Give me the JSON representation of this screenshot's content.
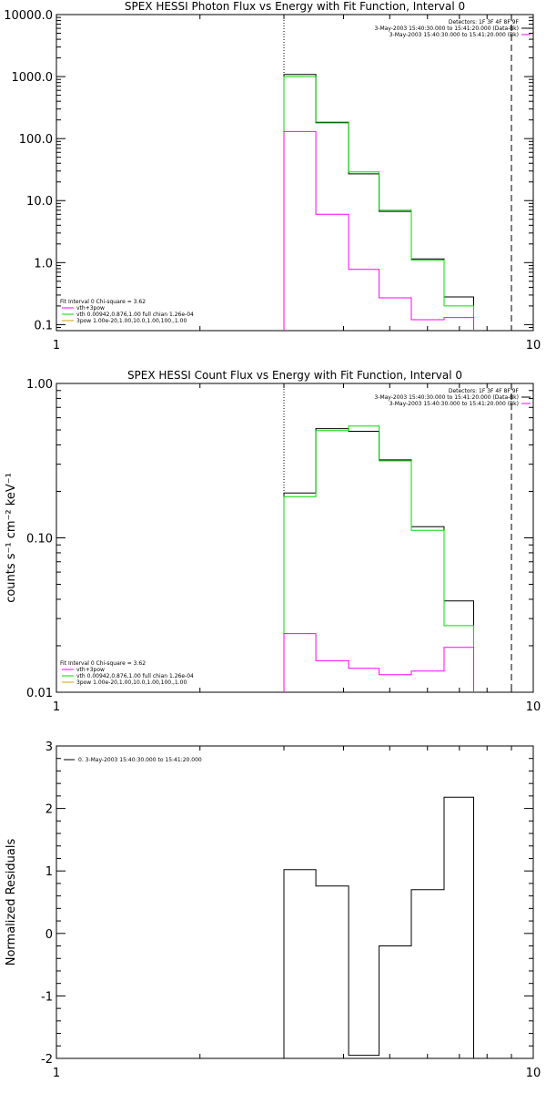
{
  "chart_data": [
    {
      "type": "line",
      "title": "SPEX HESSI Photon Flux vs Energy with Fit Function, Interval 0",
      "xscale": "log",
      "yscale": "log",
      "xlim": [
        1,
        10
      ],
      "ylim": [
        0.08,
        10000
      ],
      "x_ticks": [
        1,
        10
      ],
      "x_tick_labels": [
        "1",
        "10"
      ],
      "y_ticks": [
        0.1,
        1,
        10,
        100,
        1000,
        10000
      ],
      "y_tick_labels": [
        "0.1",
        "1.0",
        "10.0",
        "100.0",
        "1000.0",
        "10000.0"
      ],
      "vlines": [
        {
          "x": 3,
          "style": "dotted"
        },
        {
          "x": 9,
          "style": "dashed"
        }
      ],
      "legend_tr": [
        "Detectors: 1F 3F 4F 8F 9F",
        "3-May-2003 15:40:30.000 to 15:41:20.000 (Data-Bk)",
        "3-May-2003 15:40:30.000 to 15:41:20.000 (Bk)"
      ],
      "legend_bl": [
        "Fit Interval 0   Chi-square = 3.62",
        "vth+3pow",
        "vth 0.00942,0.876,1.00  full chian 1.26e-04",
        "3pow 1.00e-20,1.00,10.0,1.00,100.,1.00"
      ],
      "edges": [
        3,
        3.5,
        4.1,
        4.75,
        5.55,
        6.5,
        7.5,
        9
      ],
      "series": [
        {
          "color": "#000000",
          "values": [
            1080,
            180,
            27,
            6.7,
            1.15,
            0.28,
            null
          ]
        },
        {
          "color": "#00dd00",
          "values": [
            1000,
            185,
            29,
            7,
            1.1,
            0.2,
            null
          ]
        },
        {
          "color": "#ff00ff",
          "values": [
            130,
            6,
            0.78,
            0.27,
            0.12,
            0.13,
            null
          ]
        }
      ]
    },
    {
      "type": "line",
      "title": "SPEX HESSI Count Flux vs Energy with Fit Function, Interval 0",
      "ylabel": "counts s⁻¹ cm⁻² keV⁻¹",
      "xscale": "log",
      "yscale": "log",
      "xlim": [
        1,
        10
      ],
      "ylim": [
        0.01,
        1
      ],
      "x_ticks": [
        1,
        10
      ],
      "x_tick_labels": [
        "1",
        "10"
      ],
      "y_ticks": [
        0.01,
        0.1,
        1
      ],
      "y_tick_labels": [
        "0.01",
        "0.10",
        "1.00"
      ],
      "vlines": [
        {
          "x": 3,
          "style": "dotted"
        },
        {
          "x": 9,
          "style": "dashed"
        }
      ],
      "legend_tr": [
        "Detectors: 1F 3F 4F 8F 9F",
        "3-May-2003 15:40:30.000 to 15:41:20.000 (Data-Bk)",
        "3-May-2003 15:40:30.000 to 15:41:20.000 (Bk)"
      ],
      "legend_bl": [
        "Fit Interval 0   Chi-square = 3.62",
        "vth+3pow",
        "vth 0.00942,0.876,1.00  full chian 1.26e-04",
        "3pow 1.00e-20,1.00,10.0,1.00,100.,1.00"
      ],
      "edges": [
        3,
        3.5,
        4.1,
        4.75,
        5.55,
        6.5,
        7.5,
        9
      ],
      "series": [
        {
          "color": "#000000",
          "values": [
            0.195,
            0.51,
            0.49,
            0.32,
            0.118,
            0.039,
            null
          ]
        },
        {
          "color": "#00dd00",
          "values": [
            0.185,
            0.495,
            0.53,
            0.315,
            0.112,
            0.027,
            null
          ]
        },
        {
          "color": "#ff00ff",
          "values": [
            0.024,
            0.016,
            0.0143,
            0.013,
            0.0137,
            0.0195,
            null
          ]
        }
      ]
    },
    {
      "type": "line",
      "ylabel": "Normalized Residuals",
      "xscale": "log",
      "yscale": "linear",
      "xlim": [
        1,
        10
      ],
      "ylim": [
        -2,
        3
      ],
      "x_ticks": [
        1,
        10
      ],
      "x_tick_labels": [
        "1",
        "10"
      ],
      "y_ticks": [
        -2,
        -1,
        0,
        1,
        2,
        3
      ],
      "y_tick_labels": [
        "-2",
        "-1",
        "0",
        "1",
        "2",
        "3"
      ],
      "vlines": [],
      "legend_tl": [
        "0.  3-May-2003 15:40:30.000 to 15:41:20.000"
      ],
      "edges": [
        3,
        3.5,
        4.1,
        4.75,
        5.55,
        6.5,
        7.5,
        9
      ],
      "series": [
        {
          "color": "#000000",
          "values": [
            1.02,
            0.76,
            -1.95,
            -0.2,
            0.7,
            2.18,
            null
          ]
        }
      ]
    }
  ]
}
